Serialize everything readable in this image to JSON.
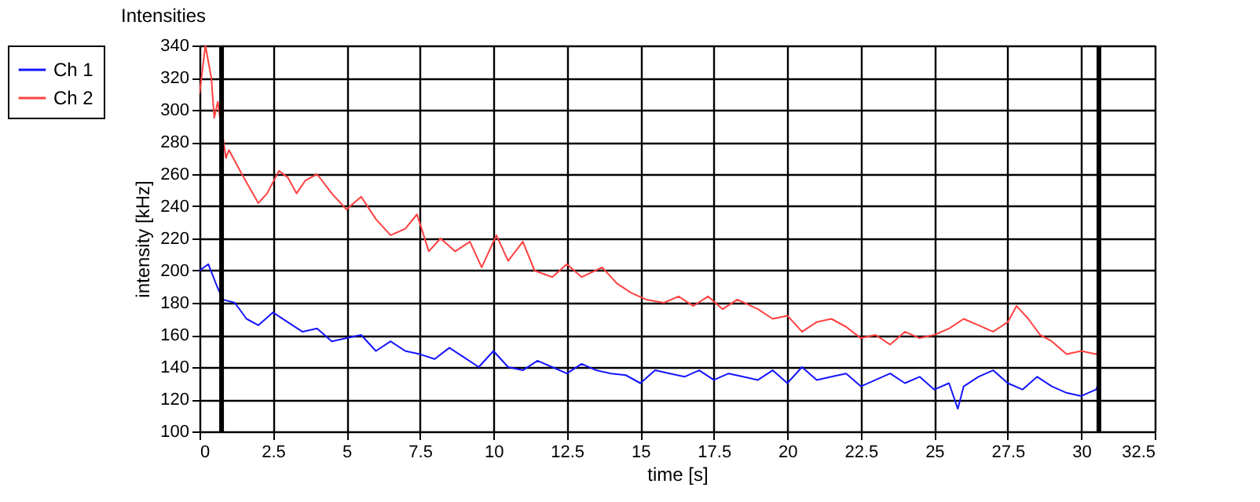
{
  "chart_data": {
    "type": "line",
    "title": "Intensities",
    "xlabel": "time [s]",
    "ylabel": "intensity [kHz]",
    "xlim": [
      0,
      32.5
    ],
    "xticks": [
      0,
      2.5,
      5,
      7.5,
      10,
      12.5,
      15,
      17.5,
      20,
      22.5,
      25,
      27.5,
      30,
      32.5
    ],
    "ylim": [
      100,
      340
    ],
    "yticks": [
      100,
      120,
      140,
      160,
      180,
      200,
      220,
      240,
      260,
      280,
      300,
      320,
      340
    ],
    "grid": true,
    "legend": "top left",
    "marker": "none",
    "line_style": "solid",
    "ref_lines": [
      {
        "axis": "x",
        "value": 0.75,
        "color": "#000000"
      },
      {
        "axis": "x",
        "value": 30.6,
        "color": "#000000"
      }
    ],
    "series": [
      {
        "name": "Ch 1",
        "color": "#1414ff",
        "x": [
          0,
          0.3,
          0.6,
          0.8,
          1.2,
          1.6,
          2.0,
          2.5,
          3.0,
          3.5,
          4.0,
          4.5,
          5.0,
          5.5,
          6.0,
          6.5,
          7.0,
          7.5,
          8.0,
          8.5,
          9.0,
          9.5,
          10.0,
          10.5,
          11.0,
          11.5,
          12.0,
          12.5,
          13.0,
          13.5,
          14.0,
          14.5,
          15.0,
          15.5,
          16.0,
          16.5,
          17.0,
          17.5,
          18.0,
          18.5,
          19.0,
          19.5,
          20.0,
          20.5,
          21.0,
          21.5,
          22.0,
          22.5,
          23.0,
          23.5,
          24.0,
          24.5,
          25.0,
          25.5,
          25.8,
          26.0,
          26.5,
          27.0,
          27.5,
          28.0,
          28.5,
          29.0,
          29.5,
          30.0,
          30.5,
          30.6
        ],
        "values": [
          200,
          204,
          190,
          182,
          180,
          170,
          166,
          174,
          168,
          162,
          164,
          156,
          158,
          160,
          150,
          156,
          150,
          148,
          145,
          152,
          146,
          140,
          150,
          140,
          138,
          144,
          140,
          136,
          142,
          138,
          136,
          135,
          130,
          138,
          136,
          134,
          138,
          132,
          136,
          134,
          132,
          138,
          130,
          140,
          132,
          134,
          136,
          128,
          132,
          136,
          130,
          134,
          126,
          130,
          114,
          128,
          134,
          138,
          130,
          126,
          134,
          128,
          124,
          122,
          126,
          130
        ]
      },
      {
        "name": "Ch 2",
        "color": "#ff4040",
        "x": [
          0,
          0.2,
          0.4,
          0.5,
          0.62,
          0.9,
          1.0,
          1.5,
          2.0,
          2.3,
          2.7,
          3.0,
          3.3,
          3.6,
          4.0,
          4.5,
          5.0,
          5.5,
          6.0,
          6.5,
          7.0,
          7.4,
          7.8,
          8.2,
          8.7,
          9.2,
          9.6,
          10.1,
          10.5,
          11.0,
          11.4,
          12.0,
          12.5,
          13.0,
          13.7,
          14.2,
          14.7,
          15.2,
          15.8,
          16.3,
          16.8,
          17.3,
          17.8,
          18.3,
          19.0,
          19.5,
          20.0,
          20.5,
          21.0,
          21.5,
          22.0,
          22.5,
          23.0,
          23.5,
          24.0,
          24.5,
          25.0,
          25.5,
          26.0,
          26.5,
          27.0,
          27.5,
          27.8,
          28.2,
          28.6,
          29.0,
          29.5,
          30.0,
          30.5,
          30.6
        ],
        "values": [
          310,
          340,
          320,
          295,
          305,
          270,
          275,
          258,
          242,
          248,
          262,
          258,
          248,
          256,
          260,
          248,
          238,
          246,
          232,
          222,
          226,
          235,
          212,
          220,
          212,
          218,
          202,
          222,
          206,
          218,
          200,
          196,
          204,
          196,
          202,
          192,
          186,
          182,
          180,
          184,
          178,
          184,
          176,
          182,
          176,
          170,
          172,
          162,
          168,
          170,
          165,
          158,
          160,
          154,
          162,
          158,
          160,
          164,
          170,
          166,
          162,
          168,
          178,
          170,
          160,
          156,
          148,
          150,
          148,
          150
        ]
      }
    ]
  }
}
